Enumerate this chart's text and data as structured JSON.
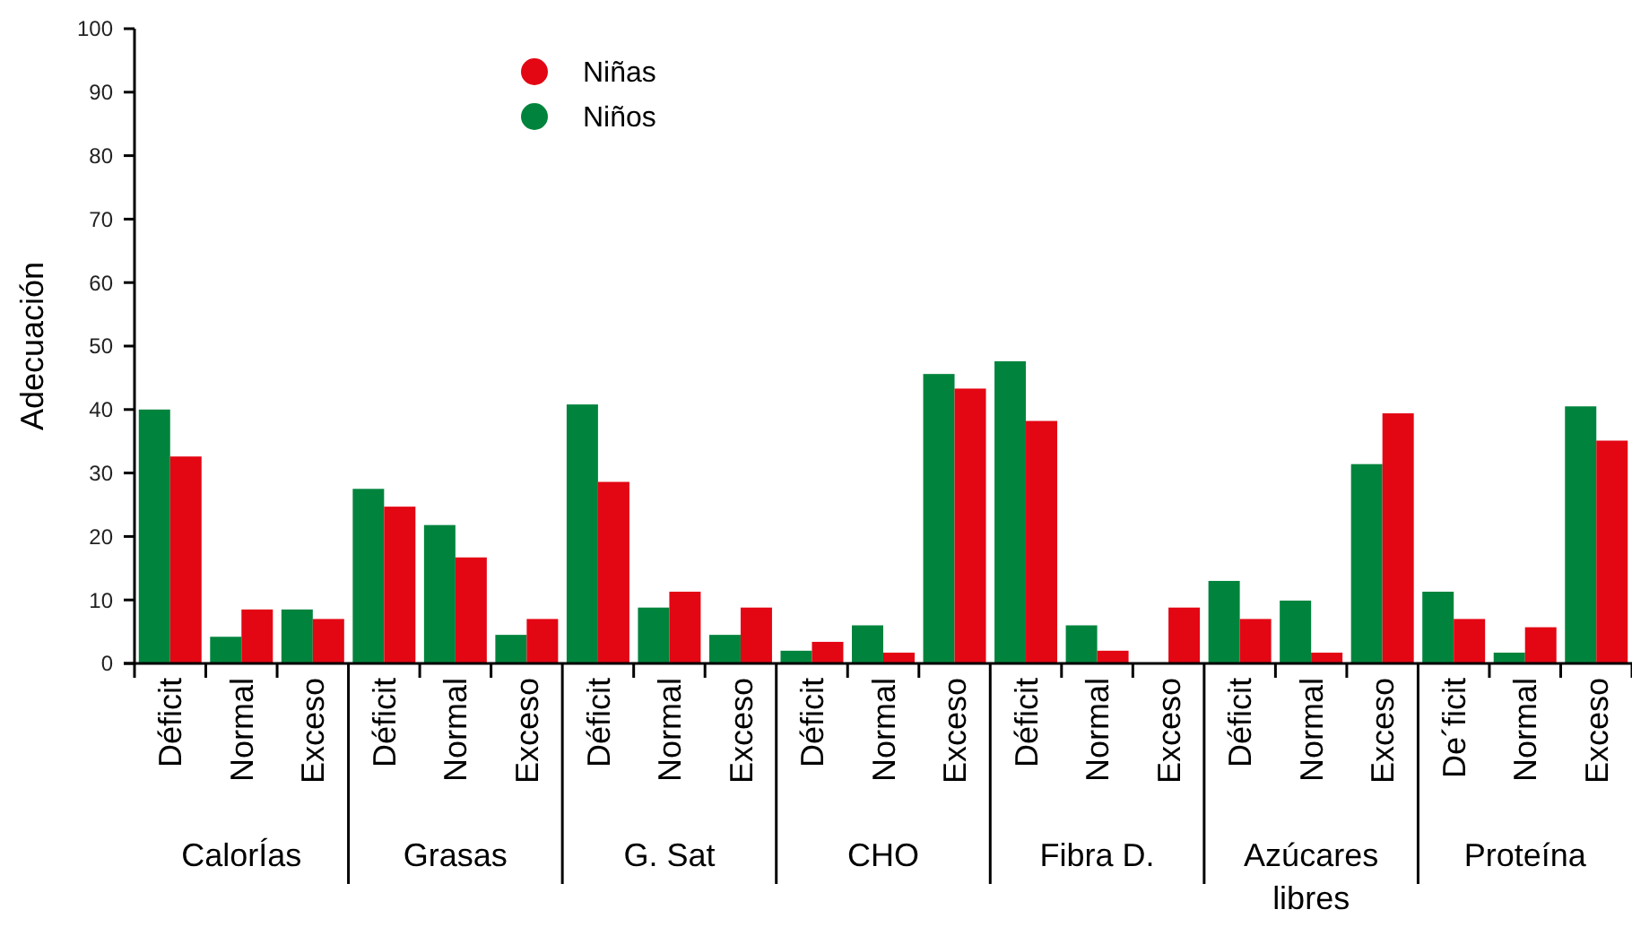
{
  "chart_data": {
    "type": "bar",
    "ylabel": "Adecuación",
    "categories": [
      "Déficit",
      "Normal",
      "Exceso",
      "Déficit",
      "Normal",
      "Exceso",
      "Déficit",
      "Normal",
      "Exceso",
      "Déficit",
      "Normal",
      "Exceso",
      "Déficit",
      "Normal",
      "Exceso",
      "Déficit",
      "Normal",
      "Exceso",
      "De´ficit",
      "Normal",
      "Exceso"
    ],
    "annotations": [
      "CalorÍas",
      "Grasas",
      "G. Sat",
      "CHO",
      "Fibra D.",
      "Azúcares libres",
      "Proteína"
    ],
    "series": [
      {
        "name": "Niños",
        "color": "#00843d",
        "values": [
          40,
          4.2,
          8.5,
          27.5,
          21.8,
          4.5,
          40.8,
          8.8,
          4.5,
          2,
          6,
          45.6,
          47.6,
          6,
          0,
          13,
          9.9,
          31.4,
          11.3,
          1.7,
          40.5
        ]
      },
      {
        "name": "Niñas",
        "color": "#e30613",
        "values": [
          32.6,
          8.5,
          7,
          24.7,
          16.7,
          7,
          28.6,
          11.3,
          8.8,
          3.4,
          1.7,
          43.3,
          38.2,
          2,
          8.8,
          7,
          1.7,
          39.4,
          7,
          5.7,
          35.1
        ]
      }
    ],
    "ylim": [
      0,
      100
    ],
    "yticks": [
      0,
      10,
      20,
      30,
      40,
      50,
      60,
      70,
      80,
      90,
      100
    ],
    "legend": "top",
    "grid": false
  }
}
